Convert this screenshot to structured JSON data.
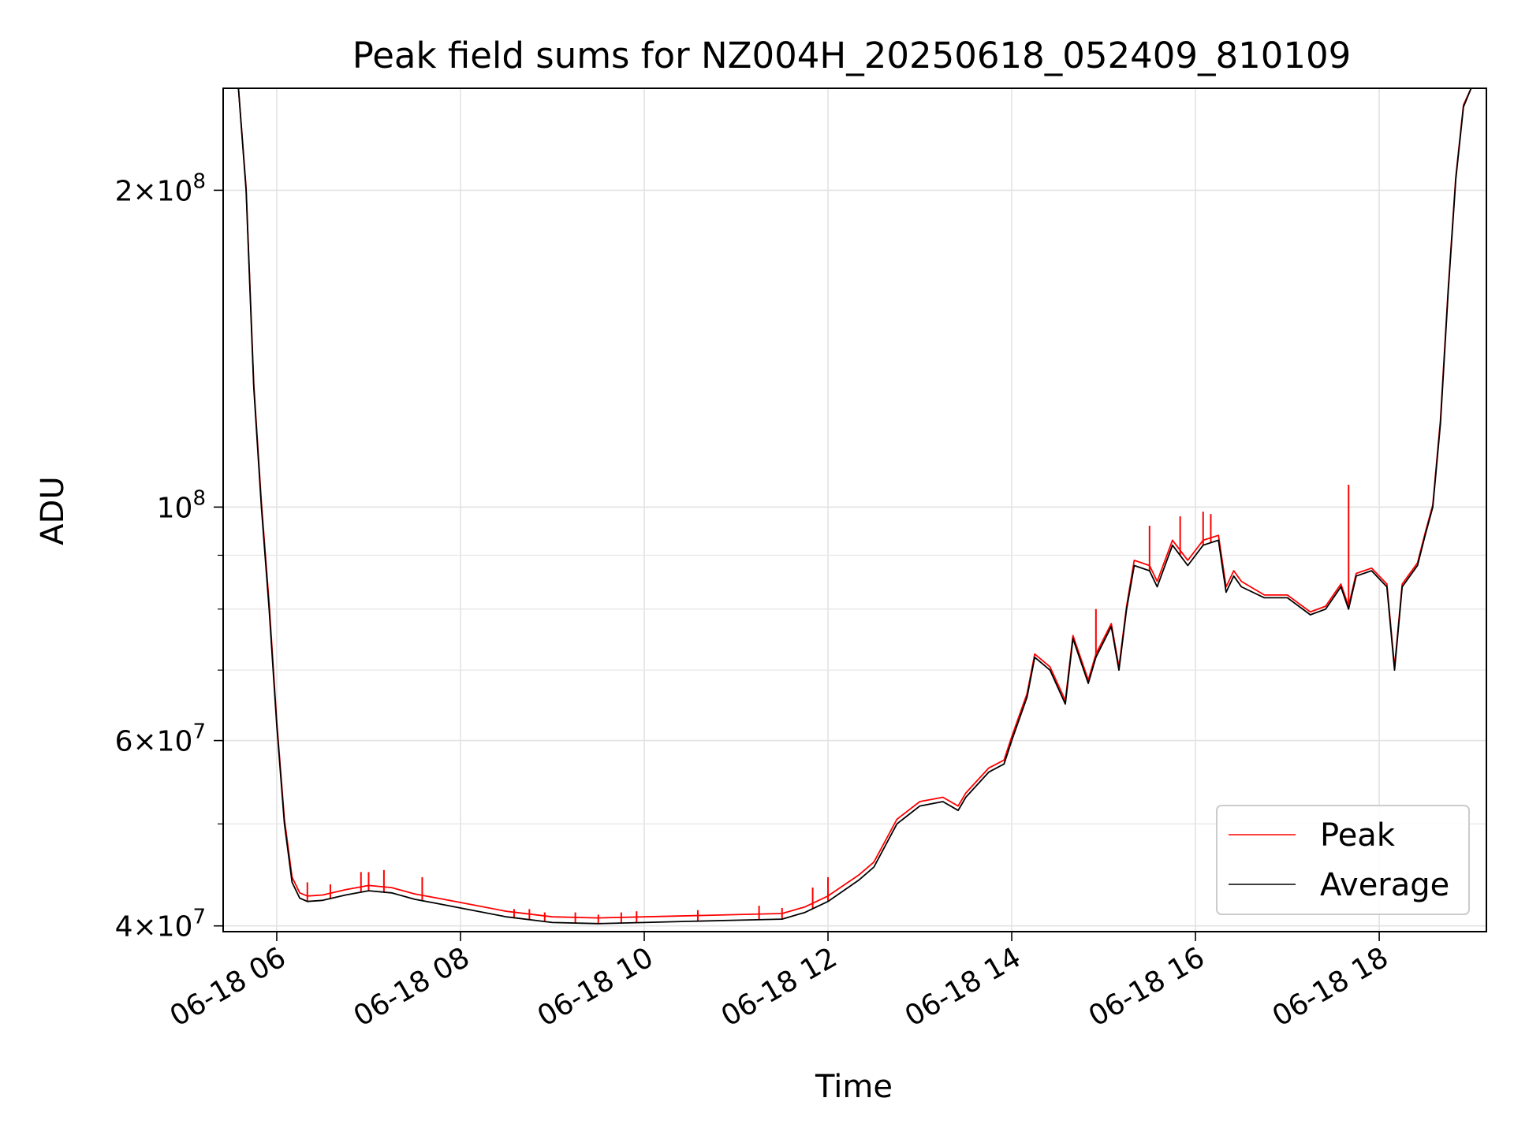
{
  "chart_data": {
    "type": "line",
    "title": "Peak field sums for NZ004H_20250618_052409_810109",
    "xlabel": "Time",
    "ylabel": "ADU",
    "y_scale": "log",
    "xlim": [
      "2025-06-18 05:25",
      "2025-06-18 19:10"
    ],
    "ylim": [
      39500000,
      250000000
    ],
    "grid": true,
    "legend": {
      "position": "lower right",
      "entries": [
        {
          "label": "Peak",
          "color": "#ff0000"
        },
        {
          "label": "Average",
          "color": "#000000"
        }
      ]
    },
    "x_ticks": [
      {
        "value": "2025-06-18 06:00",
        "label": "06-18 06"
      },
      {
        "value": "2025-06-18 08:00",
        "label": "06-18 08"
      },
      {
        "value": "2025-06-18 10:00",
        "label": "06-18 10"
      },
      {
        "value": "2025-06-18 12:00",
        "label": "06-18 12"
      },
      {
        "value": "2025-06-18 14:00",
        "label": "06-18 14"
      },
      {
        "value": "2025-06-18 16:00",
        "label": "06-18 16"
      },
      {
        "value": "2025-06-18 18:00",
        "label": "06-18 18"
      }
    ],
    "y_ticks_major": [
      {
        "value": 40000000,
        "mantissa": "4",
        "base": "10",
        "exp": "7"
      },
      {
        "value": 60000000,
        "mantissa": "6",
        "base": "10",
        "exp": "7"
      },
      {
        "value": 100000000,
        "mantissa": "",
        "base": "10",
        "exp": "8"
      },
      {
        "value": 200000000,
        "mantissa": "2",
        "base": "10",
        "exp": "8"
      }
    ],
    "y_ticks_minor": [
      50000000,
      70000000,
      80000000,
      90000000
    ],
    "series": [
      {
        "name": "Average",
        "color": "#000000",
        "x": [
          "2025-06-18 05:35",
          "2025-06-18 05:40",
          "2025-06-18 05:45",
          "2025-06-18 05:50",
          "2025-06-18 05:55",
          "2025-06-18 06:00",
          "2025-06-18 06:05",
          "2025-06-18 06:10",
          "2025-06-18 06:15",
          "2025-06-18 06:20",
          "2025-06-18 06:30",
          "2025-06-18 06:45",
          "2025-06-18 07:00",
          "2025-06-18 07:15",
          "2025-06-18 07:30",
          "2025-06-18 07:45",
          "2025-06-18 08:00",
          "2025-06-18 08:30",
          "2025-06-18 09:00",
          "2025-06-18 09:30",
          "2025-06-18 10:00",
          "2025-06-18 10:30",
          "2025-06-18 11:00",
          "2025-06-18 11:30",
          "2025-06-18 11:45",
          "2025-06-18 12:00",
          "2025-06-18 12:20",
          "2025-06-18 12:30",
          "2025-06-18 12:45",
          "2025-06-18 13:00",
          "2025-06-18 13:15",
          "2025-06-18 13:25",
          "2025-06-18 13:30",
          "2025-06-18 13:45",
          "2025-06-18 13:55",
          "2025-06-18 14:00",
          "2025-06-18 14:10",
          "2025-06-18 14:15",
          "2025-06-18 14:25",
          "2025-06-18 14:35",
          "2025-06-18 14:40",
          "2025-06-18 14:50",
          "2025-06-18 14:55",
          "2025-06-18 15:05",
          "2025-06-18 15:10",
          "2025-06-18 15:15",
          "2025-06-18 15:20",
          "2025-06-18 15:30",
          "2025-06-18 15:35",
          "2025-06-18 15:45",
          "2025-06-18 15:55",
          "2025-06-18 16:05",
          "2025-06-18 16:15",
          "2025-06-18 16:20",
          "2025-06-18 16:25",
          "2025-06-18 16:30",
          "2025-06-18 16:45",
          "2025-06-18 17:00",
          "2025-06-18 17:15",
          "2025-06-18 17:25",
          "2025-06-18 17:35",
          "2025-06-18 17:40",
          "2025-06-18 17:45",
          "2025-06-18 17:55",
          "2025-06-18 18:05",
          "2025-06-18 18:10",
          "2025-06-18 18:15",
          "2025-06-18 18:25",
          "2025-06-18 18:30",
          "2025-06-18 18:35",
          "2025-06-18 18:40",
          "2025-06-18 18:45",
          "2025-06-18 18:50",
          "2025-06-18 18:55",
          "2025-06-18 19:00"
        ],
        "values": [
          250000000,
          200000000,
          130000000,
          100000000,
          80000000,
          62000000,
          50000000,
          44000000,
          42500000,
          42200000,
          42300000,
          42800000,
          43200000,
          43000000,
          42400000,
          42000000,
          41600000,
          40800000,
          40300000,
          40200000,
          40300000,
          40400000,
          40500000,
          40600000,
          41200000,
          42200000,
          44200000,
          45500000,
          50000000,
          52000000,
          52500000,
          51500000,
          53000000,
          56000000,
          57000000,
          60000000,
          66000000,
          72000000,
          70000000,
          65000000,
          75000000,
          68000000,
          72000000,
          77000000,
          70000000,
          80000000,
          88000000,
          87000000,
          84000000,
          92000000,
          88000000,
          92000000,
          93000000,
          83000000,
          86000000,
          84000000,
          82000000,
          82000000,
          79000000,
          80000000,
          84000000,
          80000000,
          86000000,
          87000000,
          84000000,
          70000000,
          84000000,
          88000000,
          94000000,
          100000000,
          120000000,
          160000000,
          205000000,
          240000000,
          250000000
        ]
      },
      {
        "name": "Peak",
        "color": "#ff0000",
        "x": [
          "2025-06-18 05:35",
          "2025-06-18 05:40",
          "2025-06-18 05:45",
          "2025-06-18 05:50",
          "2025-06-18 05:55",
          "2025-06-18 06:00",
          "2025-06-18 06:05",
          "2025-06-18 06:10",
          "2025-06-18 06:15",
          "2025-06-18 06:20",
          "2025-06-18 06:30",
          "2025-06-18 06:45",
          "2025-06-18 07:00",
          "2025-06-18 07:15",
          "2025-06-18 07:30",
          "2025-06-18 07:45",
          "2025-06-18 08:00",
          "2025-06-18 08:30",
          "2025-06-18 09:00",
          "2025-06-18 09:30",
          "2025-06-18 10:00",
          "2025-06-18 10:30",
          "2025-06-18 11:00",
          "2025-06-18 11:30",
          "2025-06-18 11:45",
          "2025-06-18 12:00",
          "2025-06-18 12:20",
          "2025-06-18 12:30",
          "2025-06-18 12:45",
          "2025-06-18 13:00",
          "2025-06-18 13:15",
          "2025-06-18 13:25",
          "2025-06-18 13:30",
          "2025-06-18 13:45",
          "2025-06-18 13:55",
          "2025-06-18 14:00",
          "2025-06-18 14:10",
          "2025-06-18 14:15",
          "2025-06-18 14:25",
          "2025-06-18 14:35",
          "2025-06-18 14:40",
          "2025-06-18 14:50",
          "2025-06-18 14:55",
          "2025-06-18 15:05",
          "2025-06-18 15:10",
          "2025-06-18 15:15",
          "2025-06-18 15:20",
          "2025-06-18 15:30",
          "2025-06-18 15:35",
          "2025-06-18 15:45",
          "2025-06-18 15:55",
          "2025-06-18 16:05",
          "2025-06-18 16:15",
          "2025-06-18 16:20",
          "2025-06-18 16:25",
          "2025-06-18 16:30",
          "2025-06-18 16:45",
          "2025-06-18 17:00",
          "2025-06-18 17:15",
          "2025-06-18 17:25",
          "2025-06-18 17:35",
          "2025-06-18 17:40",
          "2025-06-18 17:45",
          "2025-06-18 17:55",
          "2025-06-18 18:05",
          "2025-06-18 18:10",
          "2025-06-18 18:15",
          "2025-06-18 18:25",
          "2025-06-18 18:30",
          "2025-06-18 18:35",
          "2025-06-18 18:40",
          "2025-06-18 18:45",
          "2025-06-18 18:50",
          "2025-06-18 18:55",
          "2025-06-18 19:00"
        ],
        "values": [
          250000000,
          201000000,
          131000000,
          101000000,
          81000000,
          62500000,
          50500000,
          44500000,
          43000000,
          42700000,
          42800000,
          43300000,
          43700000,
          43500000,
          42900000,
          42500000,
          42100000,
          41300000,
          40800000,
          40700000,
          40800000,
          40900000,
          41000000,
          41100000,
          41700000,
          42700000,
          44700000,
          46000000,
          50500000,
          52500000,
          53000000,
          52000000,
          53500000,
          56500000,
          57500000,
          60500000,
          66500000,
          72500000,
          70500000,
          65500000,
          75500000,
          68500000,
          72500000,
          77500000,
          70500000,
          80500000,
          89000000,
          88000000,
          85000000,
          93000000,
          89000000,
          93000000,
          94000000,
          84000000,
          87000000,
          85000000,
          82500000,
          82500000,
          79500000,
          80500000,
          84500000,
          80500000,
          86500000,
          87500000,
          84500000,
          70500000,
          84500000,
          88500000,
          94500000,
          100500000,
          121000000,
          161000000,
          206000000,
          241000000,
          250000000
        ]
      }
    ],
    "peak_spikes": [
      {
        "x": "2025-06-18 06:20",
        "value": 44000000
      },
      {
        "x": "2025-06-18 06:35",
        "value": 43800000
      },
      {
        "x": "2025-06-18 06:55",
        "value": 45000000
      },
      {
        "x": "2025-06-18 07:00",
        "value": 45000000
      },
      {
        "x": "2025-06-18 07:10",
        "value": 45200000
      },
      {
        "x": "2025-06-18 07:35",
        "value": 44500000
      },
      {
        "x": "2025-06-18 08:35",
        "value": 41500000
      },
      {
        "x": "2025-06-18 08:45",
        "value": 41500000
      },
      {
        "x": "2025-06-18 08:55",
        "value": 41200000
      },
      {
        "x": "2025-06-18 09:15",
        "value": 41200000
      },
      {
        "x": "2025-06-18 09:30",
        "value": 41000000
      },
      {
        "x": "2025-06-18 09:45",
        "value": 41200000
      },
      {
        "x": "2025-06-18 09:55",
        "value": 41300000
      },
      {
        "x": "2025-06-18 10:35",
        "value": 41400000
      },
      {
        "x": "2025-06-18 11:15",
        "value": 41800000
      },
      {
        "x": "2025-06-18 11:30",
        "value": 41600000
      },
      {
        "x": "2025-06-18 11:50",
        "value": 43500000
      },
      {
        "x": "2025-06-18 12:00",
        "value": 44500000
      },
      {
        "x": "2025-06-18 14:55",
        "value": 80000000
      },
      {
        "x": "2025-06-18 15:30",
        "value": 96000000
      },
      {
        "x": "2025-06-18 15:50",
        "value": 98000000
      },
      {
        "x": "2025-06-18 16:05",
        "value": 99000000
      },
      {
        "x": "2025-06-18 16:10",
        "value": 98500000
      },
      {
        "x": "2025-06-18 17:40",
        "value": 105000000
      }
    ]
  }
}
